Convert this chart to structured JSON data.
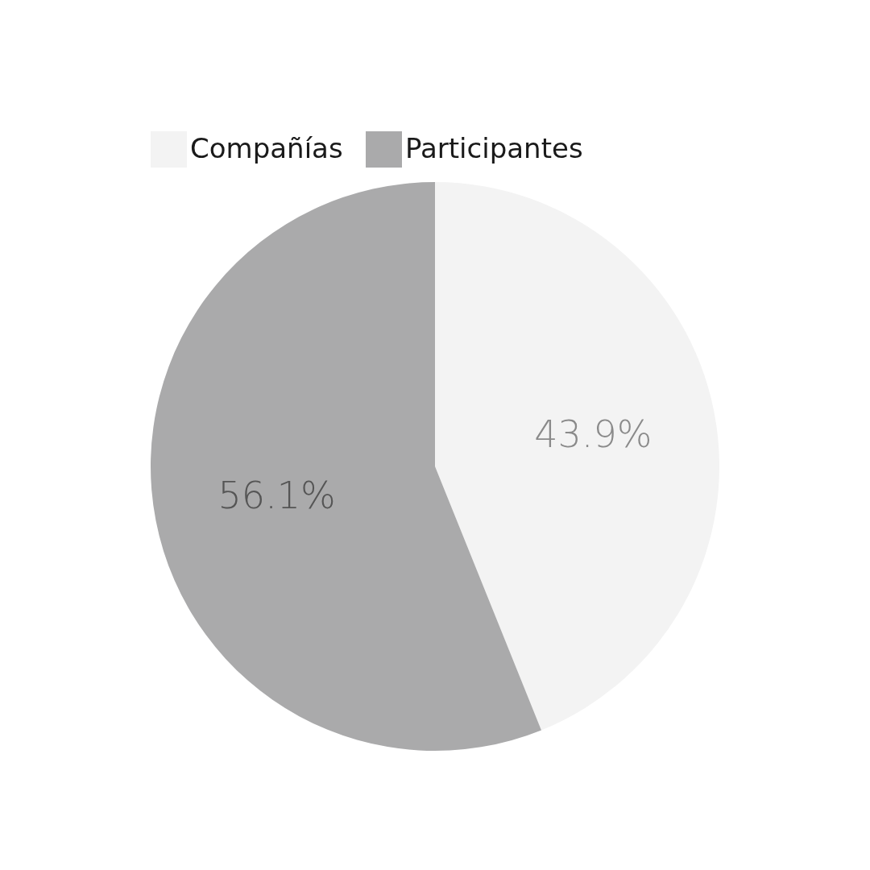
{
  "chart_data": {
    "type": "pie",
    "categories": [
      "Compañías",
      "Participantes"
    ],
    "values": [
      43.9,
      56.1
    ],
    "colors": [
      "#f3f3f3",
      "#aaaaab"
    ],
    "value_labels": [
      "43.9%",
      "56.1%"
    ],
    "legend": "top"
  }
}
